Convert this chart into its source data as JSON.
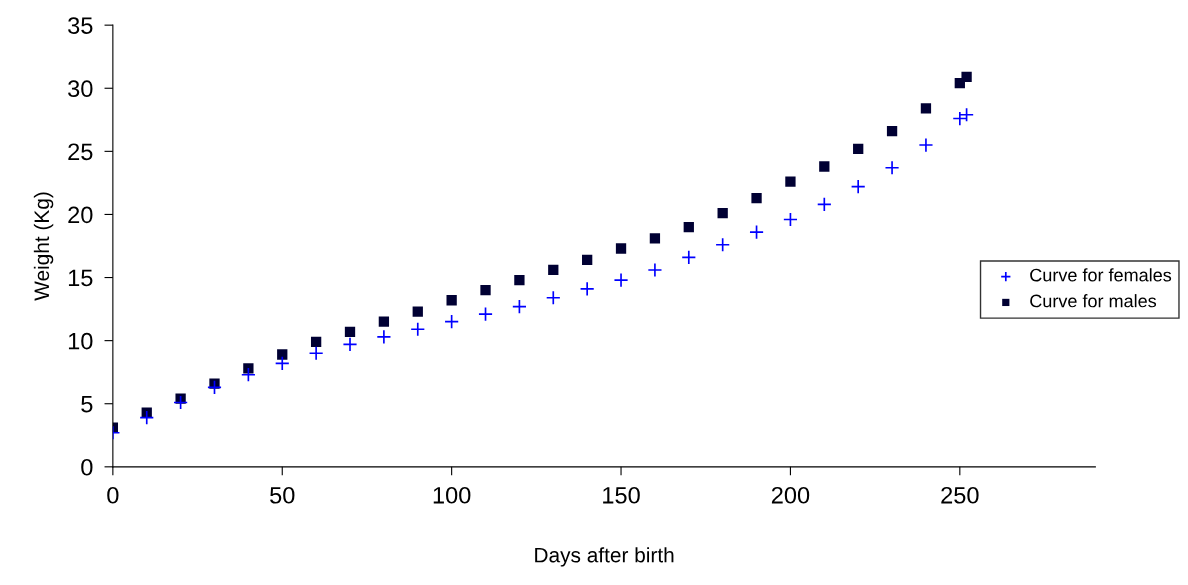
{
  "chart_data": {
    "type": "scatter",
    "xlabel": "Days after birth",
    "ylabel": "Weight (Kg)",
    "xlim": [
      0,
      290
    ],
    "xticks": [
      0,
      50,
      100,
      150,
      200,
      250
    ],
    "ylim": [
      0,
      35
    ],
    "yticks": [
      0,
      5,
      10,
      15,
      20,
      25,
      30,
      35
    ],
    "grid": false,
    "legend": "right",
    "series": [
      {
        "name": "Curve for females",
        "color": "#0000ff",
        "marker": "cross",
        "x": [
          0,
          10,
          20,
          30,
          40,
          50,
          60,
          70,
          80,
          90,
          100,
          110,
          120,
          130,
          140,
          150,
          160,
          170,
          180,
          190,
          200,
          210,
          220,
          230,
          240,
          250,
          252
        ],
        "values": [
          2.7,
          3.9,
          5.1,
          6.3,
          7.3,
          8.2,
          9.0,
          9.7,
          10.3,
          10.9,
          11.5,
          12.1,
          12.7,
          13.4,
          14.1,
          14.8,
          15.6,
          16.6,
          17.6,
          18.6,
          19.6,
          20.8,
          22.2,
          23.7,
          25.5,
          27.6,
          27.9
        ]
      },
      {
        "name": "Curve for males",
        "color": "#000033",
        "marker": "square",
        "x": [
          0,
          10,
          20,
          30,
          40,
          50,
          60,
          70,
          80,
          90,
          100,
          110,
          120,
          130,
          140,
          150,
          160,
          170,
          180,
          190,
          200,
          210,
          220,
          230,
          240,
          250,
          252
        ],
        "values": [
          3.1,
          4.3,
          5.4,
          6.6,
          7.8,
          8.9,
          9.9,
          10.7,
          11.5,
          12.3,
          13.2,
          14.0,
          14.8,
          15.6,
          16.4,
          17.3,
          18.1,
          19.0,
          20.1,
          21.3,
          22.6,
          23.8,
          25.2,
          26.6,
          28.4,
          30.4,
          30.9
        ]
      }
    ]
  }
}
